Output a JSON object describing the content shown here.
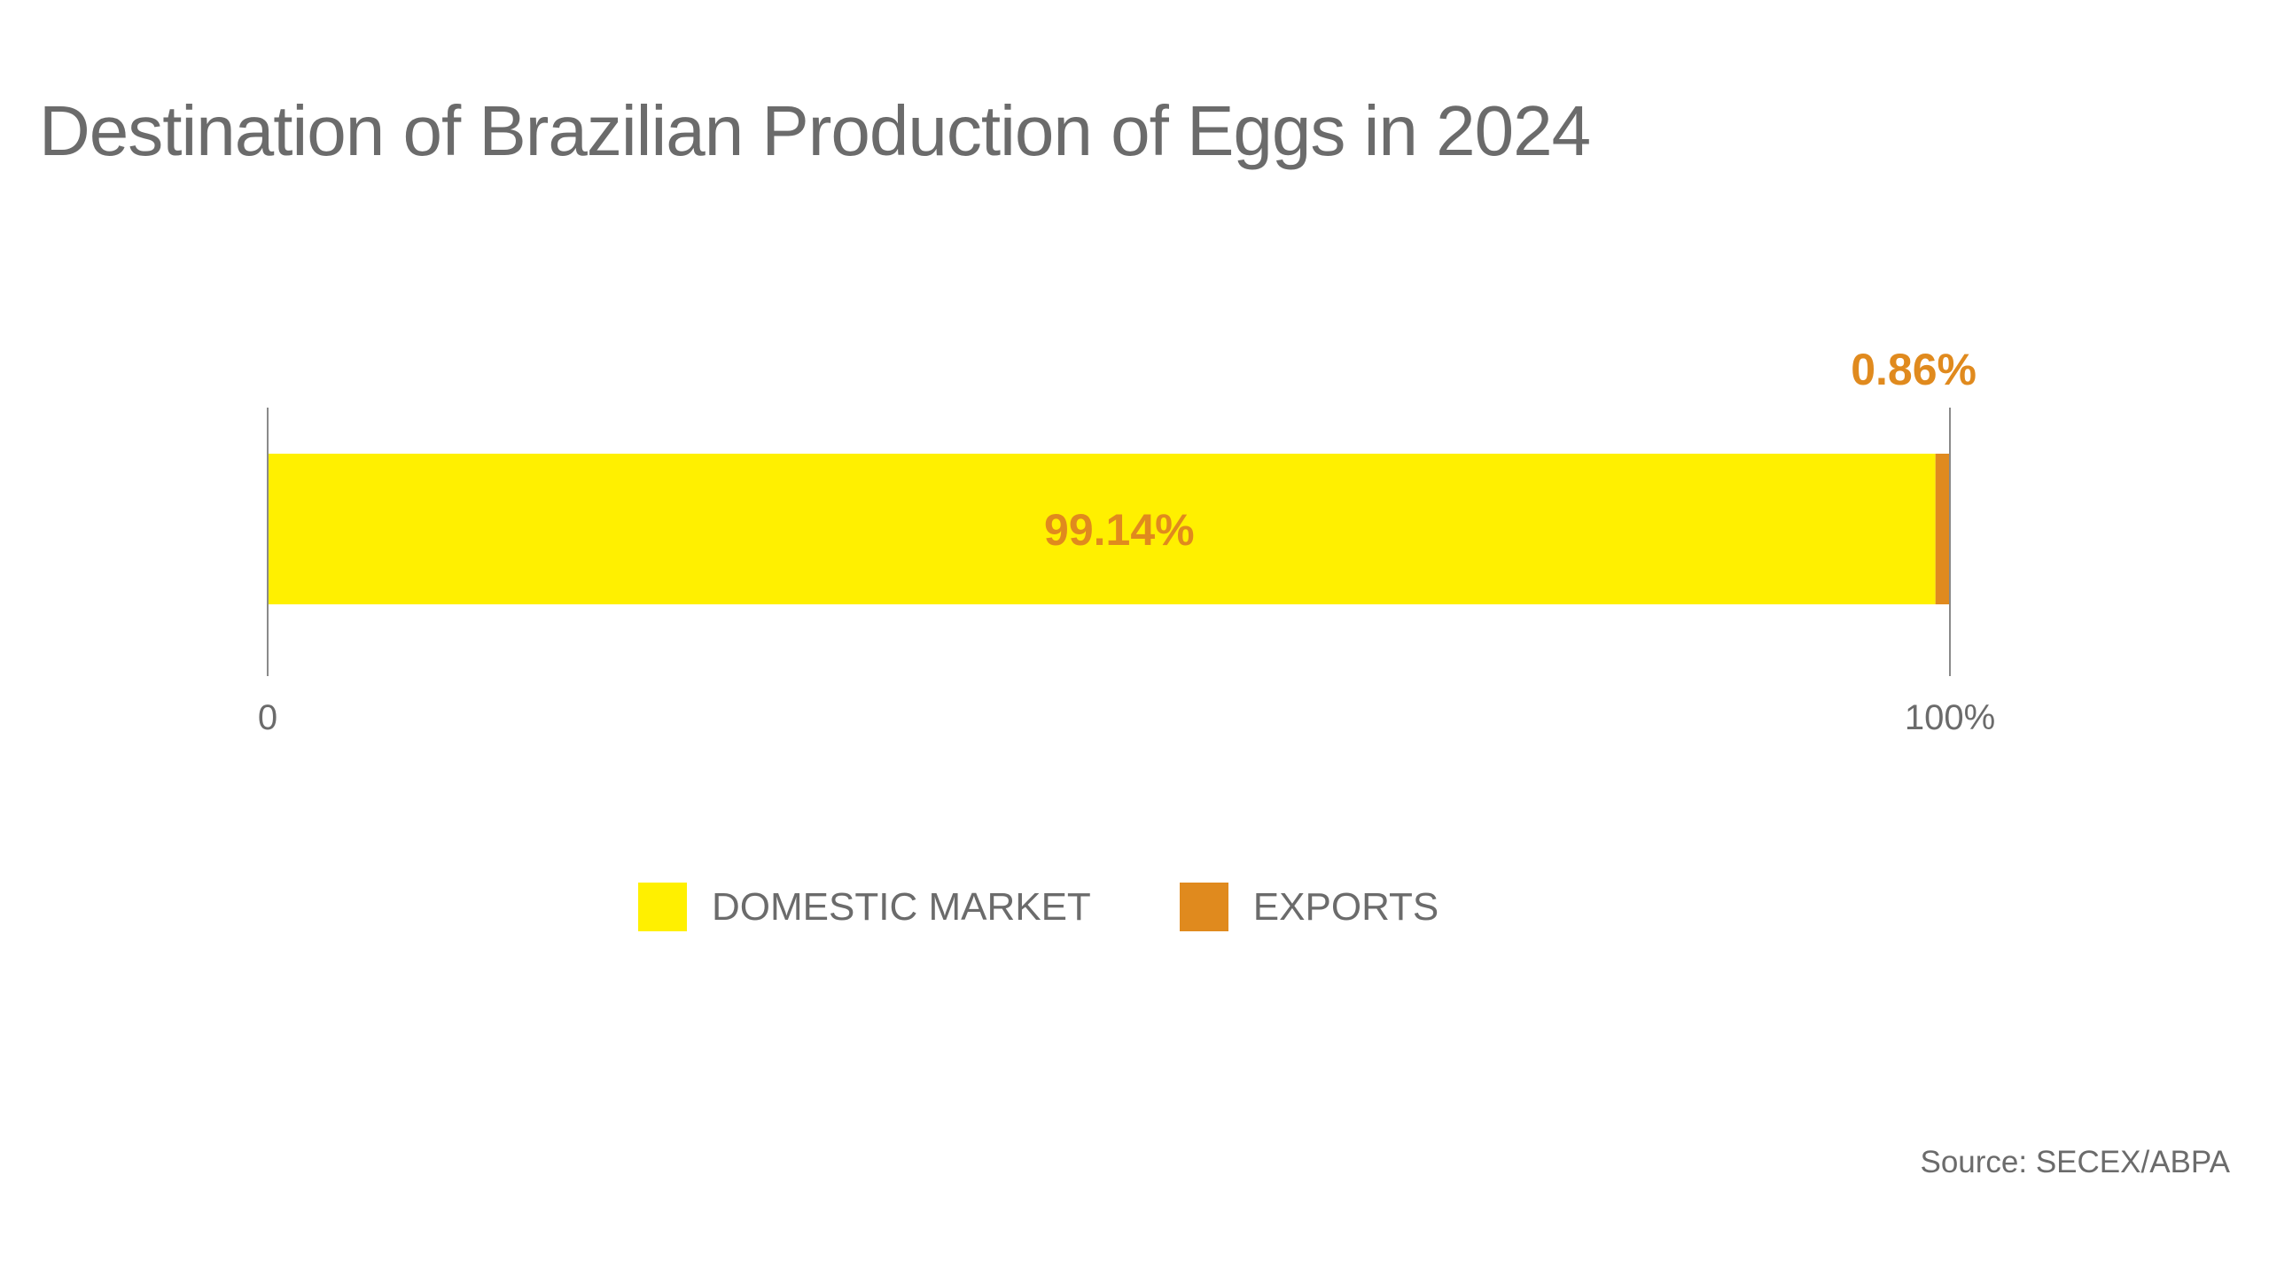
{
  "title": "Destination of Brazilian Production of Eggs in 2024",
  "source": "Source: SECEX/ABPA",
  "colors": {
    "domestic": "#FFF000",
    "exports": "#E08A1E",
    "label": "#E08A1E",
    "axis": "#8a8a8a",
    "text": "#6b6b6b"
  },
  "legend": {
    "items": [
      {
        "label": "DOMESTIC MARKET",
        "color": "#FFF000"
      },
      {
        "label": "EXPORTS",
        "color": "#E08A1E"
      }
    ]
  },
  "chart_data": {
    "type": "bar",
    "orientation": "horizontal",
    "stacked": true,
    "title": "Destination of Brazilian Production of Eggs in 2024",
    "xlabel": "",
    "ylabel": "",
    "xlim": [
      0,
      100
    ],
    "tick_labels": [
      "0",
      "100%"
    ],
    "series": [
      {
        "name": "DOMESTIC MARKET",
        "values": [
          99.14
        ],
        "label": "99.14%",
        "color": "#FFF000"
      },
      {
        "name": "EXPORTS",
        "values": [
          0.86
        ],
        "label": "0.86%",
        "color": "#E08A1E"
      }
    ],
    "grid": false,
    "legend_position": "bottom-center"
  }
}
